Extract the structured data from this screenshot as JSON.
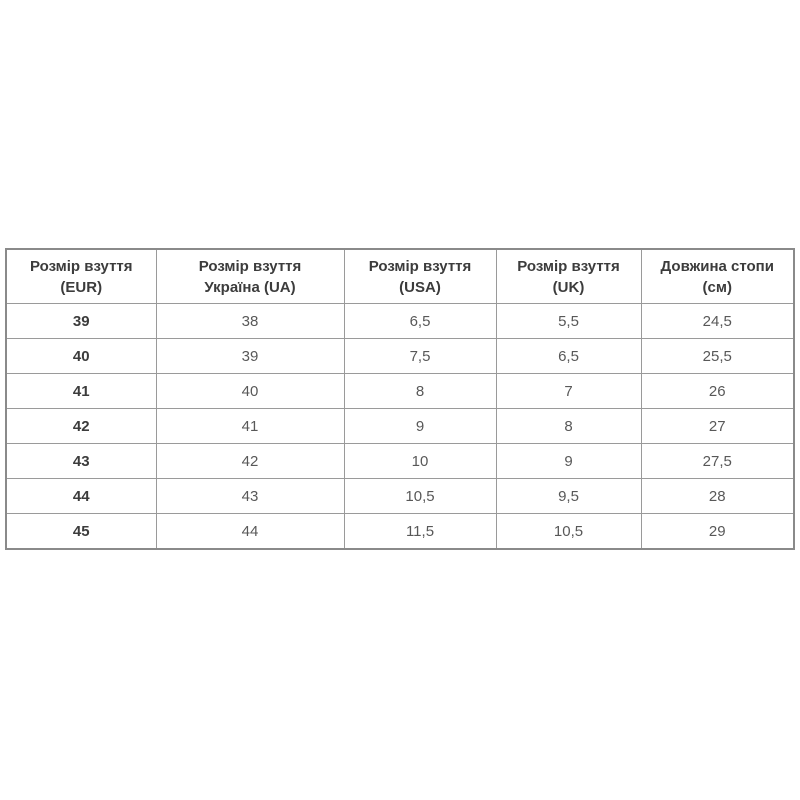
{
  "colors": {
    "background": "#ffffff",
    "outer_border": "#8a8a8a",
    "inner_border": "#9a9a9a",
    "header_text": "#3c3c3c",
    "cell_text": "#585858"
  },
  "table": {
    "columns": [
      {
        "key": "eur",
        "line1": "Розмір взуття",
        "line2": "(EUR)"
      },
      {
        "key": "ua",
        "line1": "Розмір взуття",
        "line2": "Україна (UA)"
      },
      {
        "key": "usa",
        "line1": "Розмір взуття",
        "line2": "(USA)"
      },
      {
        "key": "uk",
        "line1": "Розмір взуття",
        "line2": "(UK)"
      },
      {
        "key": "cm",
        "line1": "Довжина стопи",
        "line2": "(см)"
      }
    ],
    "rows": [
      [
        "39",
        "38",
        "6,5",
        "5,5",
        "24,5"
      ],
      [
        "40",
        "39",
        "7,5",
        "6,5",
        "25,5"
      ],
      [
        "41",
        "40",
        "8",
        "7",
        "26"
      ],
      [
        "42",
        "41",
        "9",
        "8",
        "27"
      ],
      [
        "43",
        "42",
        "10",
        "9",
        "27,5"
      ],
      [
        "44",
        "43",
        "10,5",
        "9,5",
        "28"
      ],
      [
        "45",
        "44",
        "11,5",
        "10,5",
        "29"
      ]
    ]
  },
  "chart_data": {
    "type": "table",
    "title": "",
    "columns": [
      "Розмір взуття (EUR)",
      "Розмір взуття Україна (UA)",
      "Розмір взуття (USA)",
      "Розмір взуття (UK)",
      "Довжина стопи (см)"
    ],
    "rows": [
      [
        "39",
        "38",
        "6,5",
        "5,5",
        "24,5"
      ],
      [
        "40",
        "39",
        "7,5",
        "6,5",
        "25,5"
      ],
      [
        "41",
        "40",
        "8",
        "7",
        "26"
      ],
      [
        "42",
        "41",
        "9",
        "8",
        "27"
      ],
      [
        "43",
        "42",
        "10",
        "9",
        "27,5"
      ],
      [
        "44",
        "43",
        "10,5",
        "9,5",
        "28"
      ],
      [
        "45",
        "44",
        "11,5",
        "10,5",
        "29"
      ]
    ]
  }
}
